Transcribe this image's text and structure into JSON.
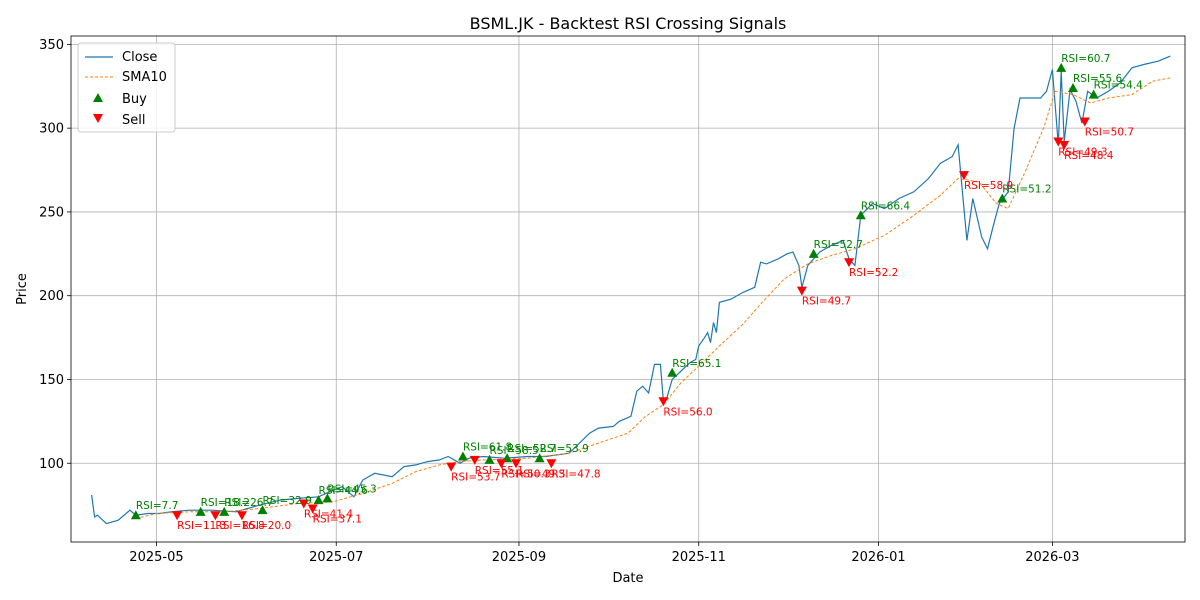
{
  "chart_data": {
    "type": "line",
    "title": "BSML.JK - Backtest RSI Crossing Signals",
    "xlabel": "Date",
    "ylabel": "Price",
    "xlim": [
      "2025-04-02",
      "2026-04-15"
    ],
    "ylim": [
      53,
      355
    ],
    "grid": true,
    "legend_placement": "top-left",
    "x_ticks": [
      "2025-05",
      "2025-07",
      "2025-09",
      "2025-11",
      "2026-01",
      "2026-03"
    ],
    "y_ticks": [
      100,
      150,
      200,
      250,
      300,
      350
    ],
    "colors": {
      "close": "#1f77b4",
      "sma10": "#ff7f0e",
      "buy": "#008000",
      "sell": "#ff0000"
    },
    "series": [
      {
        "name": "Close",
        "style": "solid",
        "points": [
          [
            "2025-04-09",
            81
          ],
          [
            "2025-04-10",
            68
          ],
          [
            "2025-04-11",
            69
          ],
          [
            "2025-04-14",
            64
          ],
          [
            "2025-04-16",
            65
          ],
          [
            "2025-04-18",
            66
          ],
          [
            "2025-04-22",
            72
          ],
          [
            "2025-04-24",
            69
          ],
          [
            "2025-04-28",
            70
          ],
          [
            "2025-05-02",
            70
          ],
          [
            "2025-05-06",
            71
          ],
          [
            "2025-05-12",
            72
          ],
          [
            "2025-05-20",
            72
          ],
          [
            "2025-05-28",
            71
          ],
          [
            "2025-06-05",
            75
          ],
          [
            "2025-06-12",
            78
          ],
          [
            "2025-06-18",
            79
          ],
          [
            "2025-06-25",
            80
          ],
          [
            "2025-06-30",
            84
          ],
          [
            "2025-07-03",
            86
          ],
          [
            "2025-07-07",
            80
          ],
          [
            "2025-07-10",
            90
          ],
          [
            "2025-07-14",
            94
          ],
          [
            "2025-07-20",
            92
          ],
          [
            "2025-07-24",
            98
          ],
          [
            "2025-07-28",
            99
          ],
          [
            "2025-08-01",
            101
          ],
          [
            "2025-08-05",
            102
          ],
          [
            "2025-08-08",
            104
          ],
          [
            "2025-08-12",
            100
          ],
          [
            "2025-08-15",
            103
          ],
          [
            "2025-08-20",
            104
          ],
          [
            "2025-08-27",
            103
          ],
          [
            "2025-09-04",
            104
          ],
          [
            "2025-09-10",
            104
          ],
          [
            "2025-09-18",
            106
          ],
          [
            "2025-09-25",
            118
          ],
          [
            "2025-09-28",
            121
          ],
          [
            "2025-10-03",
            122
          ],
          [
            "2025-10-05",
            125
          ],
          [
            "2025-10-09",
            128
          ],
          [
            "2025-10-11",
            143
          ],
          [
            "2025-10-13",
            146
          ],
          [
            "2025-10-15",
            142
          ],
          [
            "2025-10-17",
            159
          ],
          [
            "2025-10-19",
            159
          ],
          [
            "2025-10-20",
            137
          ],
          [
            "2025-10-21",
            138
          ],
          [
            "2025-10-23",
            150
          ],
          [
            "2025-10-26",
            155
          ],
          [
            "2025-10-29",
            160
          ],
          [
            "2025-10-31",
            162
          ],
          [
            "2025-11-01",
            170
          ],
          [
            "2025-11-03",
            175
          ],
          [
            "2025-11-04",
            178
          ],
          [
            "2025-11-05",
            172
          ],
          [
            "2025-11-06",
            184
          ],
          [
            "2025-11-07",
            178
          ],
          [
            "2025-11-08",
            196
          ],
          [
            "2025-11-12",
            198
          ],
          [
            "2025-11-16",
            202
          ],
          [
            "2025-11-20",
            205
          ],
          [
            "2025-11-22",
            220
          ],
          [
            "2025-11-24",
            219
          ],
          [
            "2025-11-28",
            222
          ],
          [
            "2025-12-01",
            225
          ],
          [
            "2025-12-03",
            226
          ],
          [
            "2025-12-05",
            218
          ],
          [
            "2025-12-06",
            205
          ],
          [
            "2025-12-08",
            218
          ],
          [
            "2025-12-12",
            226
          ],
          [
            "2025-12-16",
            230
          ],
          [
            "2025-12-20",
            233
          ],
          [
            "2025-12-22",
            222
          ],
          [
            "2025-12-24",
            218
          ],
          [
            "2025-12-26",
            248
          ],
          [
            "2025-12-30",
            255
          ],
          [
            "2026-01-03",
            252
          ],
          [
            "2026-01-08",
            258
          ],
          [
            "2026-01-13",
            262
          ],
          [
            "2026-01-18",
            270
          ],
          [
            "2026-01-22",
            279
          ],
          [
            "2026-01-26",
            283
          ],
          [
            "2026-01-28",
            290
          ],
          [
            "2026-01-31",
            233
          ],
          [
            "2026-02-02",
            258
          ],
          [
            "2026-02-05",
            235
          ],
          [
            "2026-02-07",
            228
          ],
          [
            "2026-02-09",
            242
          ],
          [
            "2026-02-11",
            255
          ],
          [
            "2026-02-14",
            262
          ],
          [
            "2026-02-16",
            300
          ],
          [
            "2026-02-18",
            318
          ],
          [
            "2026-02-25",
            318
          ],
          [
            "2026-02-27",
            322
          ],
          [
            "2026-03-01",
            335
          ],
          [
            "2026-03-03",
            290
          ],
          [
            "2026-03-04",
            334
          ],
          [
            "2026-03-05",
            292
          ],
          [
            "2026-03-07",
            323
          ],
          [
            "2026-03-09",
            316
          ],
          [
            "2026-03-11",
            303
          ],
          [
            "2026-03-13",
            322
          ],
          [
            "2026-03-16",
            318
          ],
          [
            "2026-03-20",
            322
          ],
          [
            "2026-03-24",
            327
          ],
          [
            "2026-03-28",
            336
          ],
          [
            "2026-04-01",
            338
          ],
          [
            "2026-04-06",
            340
          ],
          [
            "2026-04-10",
            343
          ]
        ]
      },
      {
        "name": "SMA10",
        "style": "dashed",
        "points": [
          [
            "2025-04-24",
            67
          ],
          [
            "2025-05-01",
            70
          ],
          [
            "2025-05-12",
            71
          ],
          [
            "2025-05-24",
            71
          ],
          [
            "2025-06-05",
            73
          ],
          [
            "2025-06-18",
            76
          ],
          [
            "2025-06-30",
            77
          ],
          [
            "2025-07-10",
            82
          ],
          [
            "2025-07-20",
            88
          ],
          [
            "2025-07-28",
            95
          ],
          [
            "2025-08-05",
            99
          ],
          [
            "2025-08-12",
            101
          ],
          [
            "2025-08-20",
            102
          ],
          [
            "2025-09-04",
            103
          ],
          [
            "2025-09-18",
            106
          ],
          [
            "2025-09-28",
            112
          ],
          [
            "2025-10-08",
            118
          ],
          [
            "2025-10-14",
            128
          ],
          [
            "2025-10-20",
            135
          ],
          [
            "2025-10-26",
            148
          ],
          [
            "2025-11-01",
            158
          ],
          [
            "2025-11-08",
            170
          ],
          [
            "2025-11-16",
            183
          ],
          [
            "2025-11-22",
            195
          ],
          [
            "2025-11-30",
            210
          ],
          [
            "2025-12-08",
            219
          ],
          [
            "2025-12-16",
            224
          ],
          [
            "2025-12-24",
            228
          ],
          [
            "2026-01-03",
            236
          ],
          [
            "2026-01-13",
            248
          ],
          [
            "2026-01-22",
            260
          ],
          [
            "2026-01-28",
            270
          ],
          [
            "2026-02-04",
            268
          ],
          [
            "2026-02-10",
            255
          ],
          [
            "2026-02-14",
            252
          ],
          [
            "2026-02-20",
            275
          ],
          [
            "2026-02-26",
            300
          ],
          [
            "2026-03-02",
            322
          ],
          [
            "2026-03-08",
            320
          ],
          [
            "2026-03-14",
            315
          ],
          [
            "2026-03-20",
            318
          ],
          [
            "2026-03-28",
            320
          ],
          [
            "2026-04-04",
            328
          ],
          [
            "2026-04-10",
            330
          ]
        ]
      }
    ],
    "buy_signals": [
      {
        "date": "2025-04-24",
        "price": 69,
        "label": "RSI=7.7"
      },
      {
        "date": "2025-05-16",
        "price": 71,
        "label": "RSI=18.2"
      },
      {
        "date": "2025-05-24",
        "price": 71,
        "label": "RSI=26.7"
      },
      {
        "date": "2025-06-06",
        "price": 72,
        "label": "RSI=32.9"
      },
      {
        "date": "2025-06-25",
        "price": 78,
        "label": "RSI=44.6"
      },
      {
        "date": "2025-06-28",
        "price": 79,
        "label": "RSI=45.3"
      },
      {
        "date": "2025-08-13",
        "price": 104,
        "label": "RSI=61.8"
      },
      {
        "date": "2025-08-22",
        "price": 102,
        "label": "RSI=58.5"
      },
      {
        "date": "2025-08-28",
        "price": 103,
        "label": "RSI=52.7"
      },
      {
        "date": "2025-09-08",
        "price": 103,
        "label": "RSI=53.9"
      },
      {
        "date": "2025-10-23",
        "price": 154,
        "label": "RSI=65.1"
      },
      {
        "date": "2025-12-10",
        "price": 225,
        "label": "RSI=52.7"
      },
      {
        "date": "2025-12-26",
        "price": 248,
        "label": "RSI=66.4"
      },
      {
        "date": "2026-02-12",
        "price": 258,
        "label": "RSI=51.2"
      },
      {
        "date": "2026-03-04",
        "price": 336,
        "label": "RSI=60.7"
      },
      {
        "date": "2026-03-08",
        "price": 324,
        "label": "RSI=55.6"
      },
      {
        "date": "2026-03-15",
        "price": 320,
        "label": "RSI=54.4"
      }
    ],
    "sell_signals": [
      {
        "date": "2025-05-08",
        "price": 69,
        "label": "RSI=11.3"
      },
      {
        "date": "2025-05-21",
        "price": 69,
        "label": "RSI=16.8"
      },
      {
        "date": "2025-05-30",
        "price": 69,
        "label": "RSI=20.0"
      },
      {
        "date": "2025-06-20",
        "price": 76,
        "label": "RSI=41.4"
      },
      {
        "date": "2025-06-23",
        "price": 73,
        "label": "RSI=37.1"
      },
      {
        "date": "2025-08-09",
        "price": 98,
        "label": "RSI=53.7"
      },
      {
        "date": "2025-08-17",
        "price": 102,
        "label": "RSI=55.1"
      },
      {
        "date": "2025-08-26",
        "price": 100,
        "label": "RSI=50.3"
      },
      {
        "date": "2025-08-31",
        "price": 100,
        "label": "RSI=49.3"
      },
      {
        "date": "2025-09-12",
        "price": 100,
        "label": "RSI=47.8"
      },
      {
        "date": "2025-10-20",
        "price": 137,
        "label": "RSI=56.0"
      },
      {
        "date": "2025-12-06",
        "price": 203,
        "label": "RSI=49.7"
      },
      {
        "date": "2025-12-22",
        "price": 220,
        "label": "RSI=52.2"
      },
      {
        "date": "2026-01-30",
        "price": 272,
        "label": "RSI=58.9"
      },
      {
        "date": "2026-03-03",
        "price": 292,
        "label": "RSI=49.3"
      },
      {
        "date": "2026-03-05",
        "price": 290,
        "label": "RSI=48.4"
      },
      {
        "date": "2026-03-12",
        "price": 304,
        "label": "RSI=50.7"
      }
    ],
    "legend": [
      "Close",
      "SMA10",
      "Buy",
      "Sell"
    ]
  }
}
